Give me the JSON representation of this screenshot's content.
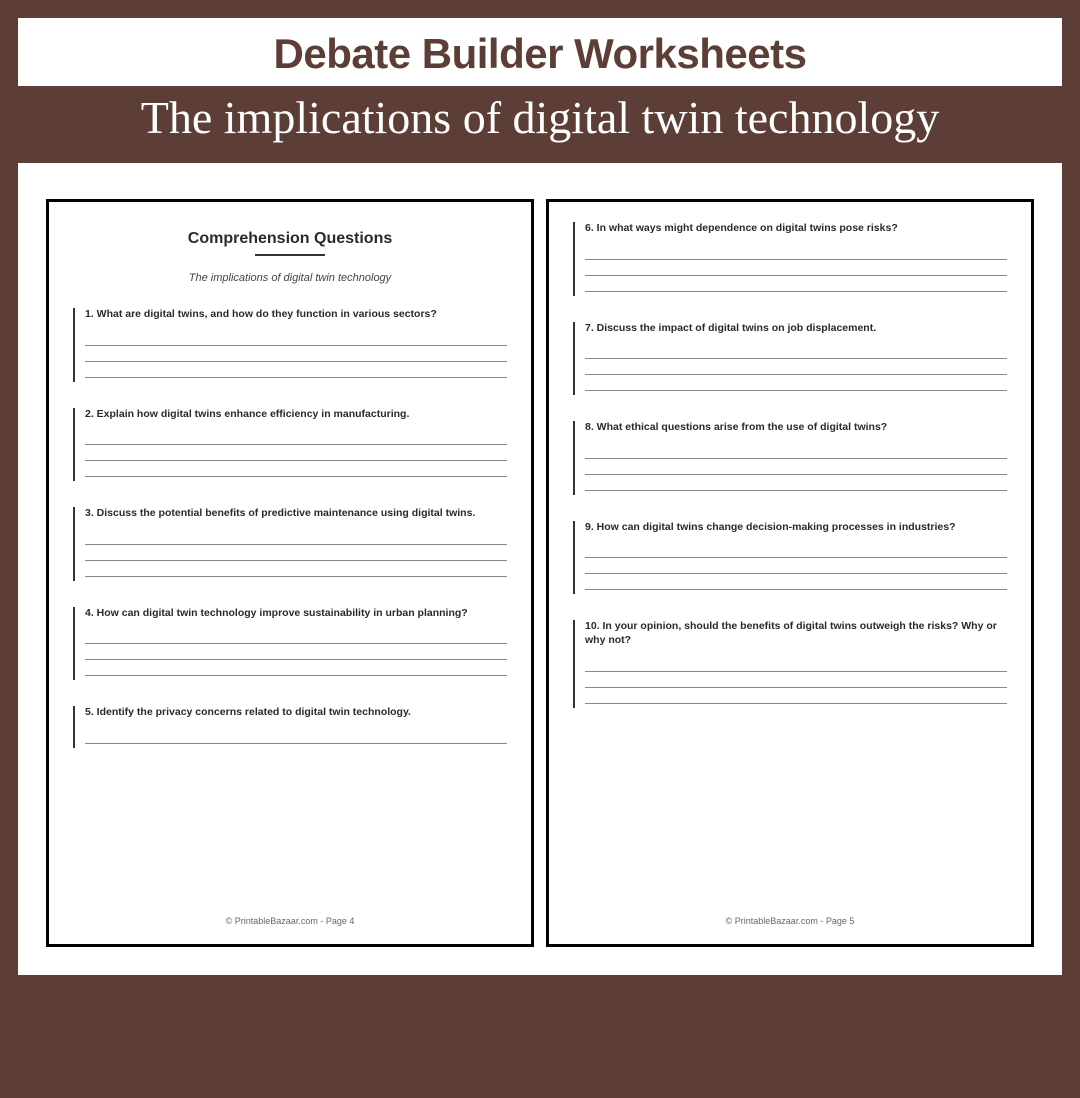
{
  "header": {
    "title": "Debate Builder Worksheets",
    "subtitle": "The implications of digital twin technology"
  },
  "colors": {
    "background": "#5d3e36",
    "header_bg": "#ffffff",
    "header_text": "#5d3e36",
    "subtitle_text": "#ffffff",
    "page_bg": "#ffffff",
    "page_border": "#000000",
    "question_text": "#2a2a2a",
    "line_color": "#888888"
  },
  "left_page": {
    "title": "Comprehension Questions",
    "topic": "The implications of digital twin technology",
    "questions": [
      "1. What are digital twins, and how do they function in various sectors?",
      "2. Explain how digital twins enhance efficiency in manufacturing.",
      "3. Discuss the potential benefits of predictive maintenance using digital twins.",
      "4. How can digital twin technology improve sustainability in urban planning?",
      "5. Identify the privacy concerns related to digital twin technology."
    ],
    "footer": "© PrintableBazaar.com - Page 4"
  },
  "right_page": {
    "questions": [
      "6. In what ways might dependence on digital twins pose risks?",
      "7. Discuss the impact of digital twins on job displacement.",
      "8. What ethical questions arise from the use of digital twins?",
      "9. How can digital twins change decision-making processes in industries?",
      "10. In your opinion, should the benefits of digital twins outweigh the risks? Why or why not?"
    ],
    "footer": "© PrintableBazaar.com - Page 5"
  },
  "answer_lines_per_question": 3
}
